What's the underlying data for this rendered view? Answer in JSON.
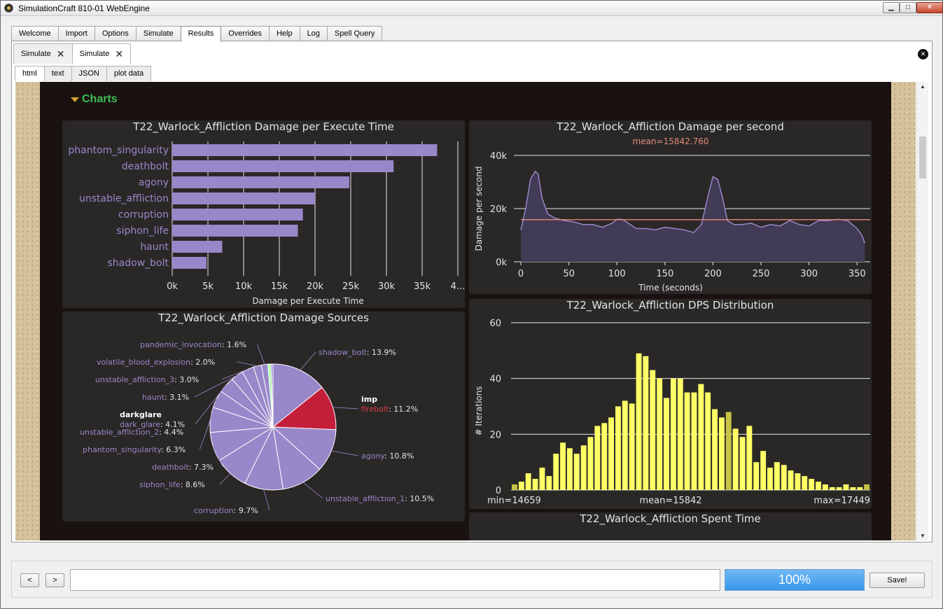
{
  "window": {
    "title": "SimulationCraft 810-01 WebEngine",
    "controls": {
      "minimize": "▁",
      "maximize": "□",
      "close": "✕"
    }
  },
  "main_tabs": [
    "Welcome",
    "Import",
    "Options",
    "Simulate",
    "Results",
    "Overrides",
    "Help",
    "Log",
    "Spell Query"
  ],
  "main_tabs_active": "Results",
  "sim_tabs": [
    {
      "label": "Simulate",
      "active": false
    },
    {
      "label": "Simulate",
      "active": true
    }
  ],
  "view_tabs": [
    "html",
    "text",
    "JSON",
    "plot data"
  ],
  "view_tabs_active": "html",
  "page": {
    "section_title": "Charts",
    "colors": {
      "background": "#1a1210",
      "panel": "#2a2827",
      "section_green": "#3ebd52",
      "toggle": "#d4a12e"
    }
  },
  "chart_data": [
    {
      "type": "bar",
      "title": "T22_Warlock_Affliction Damage per Execute Time",
      "orientation": "horizontal",
      "categories": [
        "phantom_singularity",
        "deathbolt",
        "agony",
        "unstable_affliction",
        "corruption",
        "siphon_life",
        "haunt",
        "shadow_bolt"
      ],
      "values": [
        37100,
        31000,
        24800,
        20000,
        18300,
        17600,
        7000,
        4800
      ],
      "xlabel": "Damage per Execute Time",
      "ylabel": "",
      "xlim": [
        0,
        40000
      ],
      "x_ticks": [
        "0k",
        "5k",
        "10k",
        "15k",
        "20k",
        "25k",
        "30k",
        "35k",
        "4..."
      ],
      "color": "#9887c9",
      "grid": true
    },
    {
      "type": "area",
      "title": "T22_Warlock_Affliction Damage per second",
      "subtitle": "mean=15842.760",
      "xlabel": "Time (seconds)",
      "ylabel": "Damage per second",
      "xlim": [
        0,
        360
      ],
      "ylim": [
        0,
        40000
      ],
      "x_ticks": [
        "0",
        "50",
        "100",
        "150",
        "200",
        "250",
        "300",
        "350"
      ],
      "y_ticks": [
        "0k",
        "20k",
        "40k"
      ],
      "mean": 15842.76,
      "mean_color": "#e28a7a",
      "line_color": "#9887c9",
      "x": [
        0,
        5,
        10,
        15,
        18,
        22,
        28,
        35,
        45,
        55,
        65,
        75,
        85,
        95,
        100,
        105,
        112,
        120,
        130,
        140,
        150,
        160,
        170,
        180,
        188,
        195,
        200,
        205,
        210,
        215,
        222,
        230,
        240,
        250,
        260,
        270,
        280,
        290,
        300,
        310,
        320,
        330,
        340,
        345,
        350,
        355,
        358
      ],
      "y": [
        12000,
        20000,
        31000,
        34000,
        33000,
        24000,
        18000,
        16500,
        15500,
        15000,
        14000,
        14000,
        13000,
        14500,
        16000,
        16000,
        14500,
        12500,
        12500,
        12000,
        13000,
        12500,
        12000,
        11000,
        14000,
        25000,
        32000,
        31000,
        24000,
        15500,
        14000,
        14000,
        14500,
        13000,
        14000,
        13500,
        15500,
        14000,
        13500,
        15500,
        15500,
        16000,
        15500,
        14000,
        12500,
        10000,
        7000
      ],
      "grid": true
    },
    {
      "type": "pie",
      "title": "T22_Warlock_Affliction Damage Sources",
      "slices": [
        {
          "label": "shadow_bolt",
          "value": 13.9,
          "display": "13.9%",
          "color": "#9887c9"
        },
        {
          "label": "firebolt",
          "group": "imp",
          "value": 11.2,
          "display": "11.2%",
          "color": "#c41e3a"
        },
        {
          "label": "agony",
          "value": 10.8,
          "display": "10.8%",
          "color": "#9887c9"
        },
        {
          "label": "unstable_affliction_1",
          "value": 10.5,
          "display": "10.5%",
          "color": "#9887c9"
        },
        {
          "label": "corruption",
          "value": 9.7,
          "display": "9.7%",
          "color": "#9887c9"
        },
        {
          "label": "siphon_life",
          "value": 8.6,
          "display": "8.6%",
          "color": "#9887c9"
        },
        {
          "label": "deathbolt",
          "value": 7.3,
          "display": "7.3%",
          "color": "#9887c9"
        },
        {
          "label": "phantom_singularity",
          "value": 6.3,
          "display": "6.3%",
          "color": "#9887c9"
        },
        {
          "label": "unstable_affliction_2",
          "value": 4.4,
          "display": "4.4%",
          "color": "#9887c9"
        },
        {
          "label": "dark_glare",
          "group": "darkglare",
          "value": 4.1,
          "display": "4.1%",
          "color": "#9887c9"
        },
        {
          "label": "haunt",
          "value": 3.1,
          "display": "3.1%",
          "color": "#9887c9"
        },
        {
          "label": "unstable_affliction_3",
          "value": 3.0,
          "display": "3.0%",
          "color": "#9887c9"
        },
        {
          "label": "volatile_blood_explosion",
          "value": 2.0,
          "display": "2.0%",
          "color": "#9887c9"
        },
        {
          "label": "pandemic_invocation",
          "value": 1.6,
          "display": "1.6%",
          "color": "#9887c9"
        },
        {
          "label": "",
          "value": 0.8,
          "display": "",
          "color": "#aaffaa"
        },
        {
          "label": "",
          "value": 0.5,
          "display": "",
          "color": "#9887c9"
        }
      ]
    },
    {
      "type": "bar",
      "title": "T22_Warlock_Affliction DPS Distribution",
      "ylabel": "# Iterations",
      "xlabel": "",
      "ylim": [
        0,
        60
      ],
      "y_ticks": [
        "0",
        "20",
        "40",
        "60"
      ],
      "min_label": "min=14659",
      "mean_label": "mean=15842",
      "max_label": "max=17449",
      "bar_color": "#ffff66",
      "highlight_color": "#c7c244",
      "values": [
        2,
        3,
        6,
        4,
        8,
        5,
        13,
        17,
        15,
        13,
        16,
        19,
        23,
        24,
        26,
        30,
        32,
        31,
        49,
        48,
        43,
        40,
        33,
        40,
        40,
        35,
        35,
        38,
        35,
        29,
        26,
        28,
        22,
        19,
        23,
        10,
        14,
        8,
        10,
        9,
        7,
        6,
        5,
        4,
        3,
        2,
        1,
        1,
        2,
        1,
        1,
        2
      ],
      "highlight_indices": [
        0,
        31,
        51
      ]
    },
    {
      "type": "bar",
      "title": "T22_Warlock_Affliction Spent Time"
    }
  ],
  "bottom": {
    "back": "<",
    "forward": ">",
    "url_value": "",
    "progress": "100%",
    "save": "Save!"
  }
}
